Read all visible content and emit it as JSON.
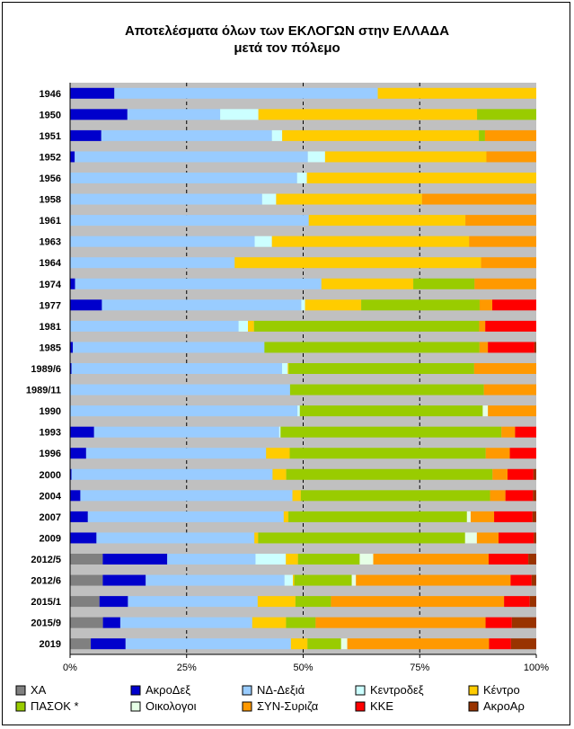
{
  "chart_data": {
    "type": "bar",
    "orientation": "horizontal",
    "stacked": true,
    "normalized": true,
    "title": "Αποτελέσματα όλων των ΕΚΛΟΓΩΝ στην ΕΛΛΑΔΑ",
    "subtitle": "μετά τον πόλεμο",
    "xlim": [
      0,
      100
    ],
    "xticks": [
      "0%",
      "25%",
      "50%",
      "75%",
      "100%"
    ],
    "grid": true,
    "legend_position": "bottom",
    "categories": [
      "1946",
      "1950",
      "1951",
      "1952",
      "1956",
      "1958",
      "1961",
      "1963",
      "1964",
      "1974",
      "1977",
      "1981",
      "1985",
      "1989/6",
      "1989/11",
      "1990",
      "1993",
      "1996",
      "2000",
      "2004",
      "2007",
      "2009",
      "2012/5",
      "2012/6",
      "2015/1",
      "2015/9",
      "2019"
    ],
    "series": [
      {
        "name": "ΧΑ",
        "color": "#808080",
        "values": [
          0,
          0,
          0,
          0,
          0,
          0,
          0,
          0,
          0,
          0,
          0,
          0,
          0,
          0,
          0,
          0,
          0,
          0,
          0,
          0,
          0,
          0,
          7,
          7,
          6.3,
          7,
          5
        ]
      },
      {
        "name": "ΑκροΔεξ",
        "color": "#0000cc",
        "values": [
          9.5,
          12.3,
          6.7,
          1,
          0,
          0,
          0,
          0,
          0,
          1.1,
          6.8,
          0,
          0.6,
          0.3,
          0,
          0,
          5.1,
          3.4,
          0.3,
          2.2,
          3.8,
          5.6,
          13.8,
          9.2,
          6.1,
          3.7,
          8.4
        ]
      },
      {
        "name": "ΝΔ-Δεξιά",
        "color": "#99ccff",
        "values": [
          56.5,
          19.9,
          36.6,
          50,
          48.7,
          41.2,
          51.2,
          39.6,
          35.2,
          54.7,
          42.6,
          36,
          40.8,
          44.4,
          46.2,
          48,
          39.3,
          38.1,
          42.7,
          45.4,
          41.8,
          33.5,
          18.9,
          29.7,
          27.8,
          28.1,
          39.9
        ]
      },
      {
        "name": "Κεντροδεξ",
        "color": "#ccffff",
        "values": [
          0,
          8.2,
          2.2,
          3.7,
          2.1,
          3,
          0,
          3.7,
          0,
          0,
          0.8,
          2,
          0,
          1.2,
          0,
          0.5,
          0.3,
          0,
          0,
          0,
          0,
          0,
          6.5,
          1.8,
          0,
          0,
          0
        ]
      },
      {
        "name": "Κέντρο",
        "color": "#ffcc00",
        "values": [
          34,
          46.9,
          42.2,
          34.6,
          49.2,
          31.3,
          33.6,
          42.3,
          52.7,
          20.4,
          12,
          1.3,
          0,
          0.2,
          0,
          0,
          0,
          5,
          2.9,
          1.8,
          1,
          0.8,
          2.6,
          0.3,
          8.1,
          7.2,
          4
        ]
      },
      {
        "name": "ΠΑΣΟΚ *",
        "color": "#99cc00",
        "values": [
          0,
          12.7,
          1.3,
          0,
          0,
          0,
          0,
          0,
          0,
          13.6,
          25.3,
          48.1,
          45.8,
          39.1,
          40.7,
          38.6,
          46.9,
          41.5,
          43.8,
          40.5,
          38.1,
          43.9,
          13.2,
          12.3,
          7.6,
          6.3,
          8.1
        ]
      },
      {
        "name": "Οικολογοι",
        "color": "#e6ffe6",
        "values": [
          0,
          0,
          0,
          0,
          0,
          0,
          0,
          0,
          0,
          0,
          0,
          0,
          0,
          0,
          0,
          1.1,
          0,
          0,
          0,
          0,
          0.8,
          2.5,
          2.9,
          0.9,
          0,
          0,
          1.5
        ]
      },
      {
        "name": "ΣΥΝ-Συριζα",
        "color": "#ff9900",
        "values": [
          0,
          0,
          11,
          10.7,
          0,
          24.5,
          15.2,
          14.4,
          11.8,
          13.7,
          2.7,
          1.3,
          1.8,
          13.1,
          11,
          10.2,
          2.9,
          5.1,
          3.2,
          3.3,
          5,
          4.6,
          24.7,
          33.1,
          37.1,
          36.2,
          34.2
        ]
      },
      {
        "name": "ΚΚΕ",
        "color": "#ff0000",
        "values": [
          0,
          0,
          0,
          0,
          0,
          0,
          0,
          0,
          0,
          0,
          9.4,
          10.9,
          9.9,
          0,
          0,
          0,
          4.5,
          5.6,
          5.5,
          5.9,
          8.2,
          7.5,
          8.5,
          4.5,
          5.5,
          5.6,
          5.3
        ]
      },
      {
        "name": "ΑκροΑρ",
        "color": "#993300",
        "values": [
          0,
          0,
          0,
          0,
          0,
          0,
          0,
          0,
          0,
          0,
          0,
          0,
          0.4,
          0,
          0,
          0,
          0,
          0,
          0.6,
          0.7,
          0.8,
          0.5,
          1.7,
          1,
          1.4,
          5.2,
          6.1
        ]
      }
    ]
  }
}
